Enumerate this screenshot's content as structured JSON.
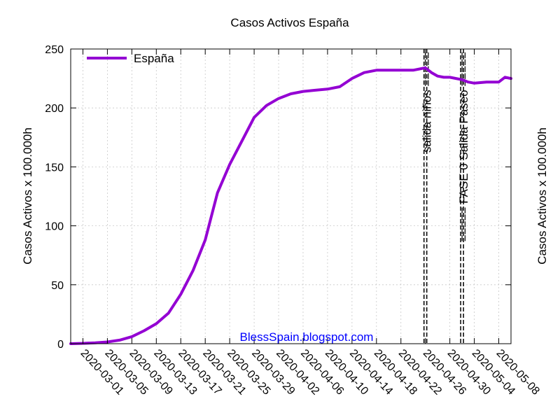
{
  "chart_data": {
    "type": "line",
    "title": "Casos Activos España",
    "ylabel": "Casos Activos x 100.000h",
    "y2label": "Casos Activos x 100.000h",
    "xlabel": "",
    "xlim": [
      "2020-02-28",
      "2020-05-10"
    ],
    "ylim": [
      0,
      250
    ],
    "yticks": [
      0,
      50,
      100,
      150,
      200,
      250
    ],
    "xticks": [
      "2020-03-01",
      "2020-03-05",
      "2020-03-09",
      "2020-03-13",
      "2020-03-17",
      "2020-03-21",
      "2020-03-25",
      "2020-03-29",
      "2020-04-02",
      "2020-04-06",
      "2020-04-10",
      "2020-04-14",
      "2020-04-18",
      "2020-04-22",
      "2020-04-26",
      "2020-04-30",
      "2020-05-04",
      "2020-05-08"
    ],
    "grid": true,
    "legend_position": "top-left",
    "watermark": "BlessSpain.blogspot.com",
    "watermark_color": "#0000ff",
    "annotations": [
      {
        "x": "2020-04-26",
        "label": "salida niños ====="
      },
      {
        "x": "2020-05-02",
        "label": "===== FASE 0 Salida Paseo ====="
      }
    ],
    "series": [
      {
        "name": "España",
        "color": "#9400d3",
        "x": [
          "2020-02-28",
          "2020-03-01",
          "2020-03-03",
          "2020-03-05",
          "2020-03-07",
          "2020-03-09",
          "2020-03-11",
          "2020-03-13",
          "2020-03-15",
          "2020-03-17",
          "2020-03-19",
          "2020-03-21",
          "2020-03-23",
          "2020-03-25",
          "2020-03-27",
          "2020-03-29",
          "2020-03-31",
          "2020-04-02",
          "2020-04-04",
          "2020-04-06",
          "2020-04-08",
          "2020-04-10",
          "2020-04-12",
          "2020-04-14",
          "2020-04-16",
          "2020-04-18",
          "2020-04-20",
          "2020-04-22",
          "2020-04-24",
          "2020-04-26",
          "2020-04-27",
          "2020-04-28",
          "2020-04-29",
          "2020-04-30",
          "2020-05-01",
          "2020-05-02",
          "2020-05-03",
          "2020-05-04",
          "2020-05-06",
          "2020-05-08",
          "2020-05-09",
          "2020-05-10"
        ],
        "values": [
          0,
          0.3,
          0.8,
          1.5,
          3,
          6,
          11,
          17,
          26,
          42,
          62,
          88,
          128,
          152,
          172,
          192,
          202,
          208,
          212,
          214,
          215,
          216,
          218,
          225,
          230,
          232,
          232,
          232,
          232,
          234,
          230,
          227,
          226,
          226,
          225,
          224,
          222,
          221,
          222,
          222,
          226,
          225
        ]
      }
    ]
  }
}
